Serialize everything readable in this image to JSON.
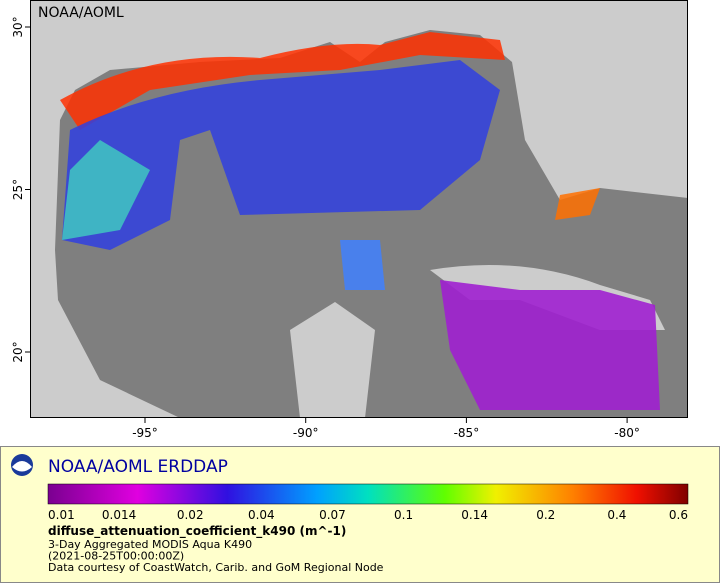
{
  "map": {
    "header": "NOAA/AOML",
    "lat_ticks": [
      "30°",
      "25°",
      "20°"
    ],
    "lon_ticks": [
      "-95°",
      "-90°",
      "-85°",
      "-80°"
    ]
  },
  "legend": {
    "title": "NOAA/AOML ERDDAP",
    "colorbar_labels": [
      "0.01",
      "0.014",
      "0.02",
      "0.04",
      "0.07",
      "0.1",
      "0.14",
      "0.2",
      "0.4",
      "0.6"
    ],
    "variable": "diffuse_attenuation_coefficient_k490 (m^-1)",
    "lines": [
      "3-Day Aggregated MODIS Aqua K490",
      "(2021-08-25T00:00:00Z)",
      "Data courtesy of CoastWatch, Carib. and GoM Regional Node"
    ]
  }
}
